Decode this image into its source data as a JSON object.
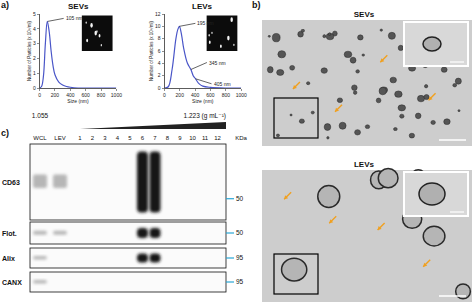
{
  "panels": {
    "a": "a)",
    "b": "b)",
    "c": "c)"
  },
  "chart_data": [
    {
      "type": "line",
      "title": "SEVs",
      "x_label": "Size (nm)",
      "y_label": "Number of Particles (x 10⁶/ml)",
      "color": "#4a56c8",
      "grid": false,
      "x": [
        0,
        25,
        50,
        75,
        100,
        125,
        150,
        175,
        200,
        250,
        300,
        350,
        400,
        500,
        600,
        800,
        1000
      ],
      "values": [
        0,
        0.1,
        0.8,
        3.0,
        4.5,
        3.8,
        2.5,
        1.5,
        0.9,
        0.4,
        0.2,
        0.1,
        0.05,
        0,
        0,
        0,
        0
      ],
      "xlim": [
        0,
        1000
      ],
      "xticks": [
        0,
        200,
        400,
        600,
        800,
        1000
      ],
      "ylim": [
        0,
        5
      ],
      "yticks": [
        0,
        1,
        2,
        3,
        4,
        5
      ],
      "annotations": [
        {
          "text": "105 nm",
          "x": 105,
          "y": 4.5
        }
      ]
    },
    {
      "type": "line",
      "title": "LEVs",
      "x_label": "Size (nm)",
      "y_label": "Number of Particles (x 10⁶/ml)",
      "color": "#4a56c8",
      "grid": false,
      "x": [
        0,
        50,
        100,
        150,
        175,
        195,
        225,
        250,
        300,
        345,
        375,
        405,
        450,
        500,
        600,
        800,
        1000
      ],
      "values": [
        0,
        0.2,
        3,
        8,
        9.5,
        10,
        8.5,
        6.5,
        4,
        3,
        2,
        1.5,
        0.7,
        0.3,
        0.1,
        0,
        0
      ],
      "xlim": [
        0,
        1000
      ],
      "xticks": [
        0,
        200,
        400,
        600,
        800,
        1000
      ],
      "ylim": [
        0,
        12
      ],
      "yticks": [
        0,
        2,
        4,
        6,
        8,
        10,
        12
      ],
      "annotations": [
        {
          "text": "195 nm",
          "x": 195,
          "y": 10
        },
        {
          "text": "345 nm",
          "x": 345,
          "y": 3
        },
        {
          "text": "405 nm",
          "x": 405,
          "y": 1.5
        }
      ]
    }
  ],
  "tem": {
    "labels": [
      "SEVs",
      "LEVs"
    ]
  },
  "gradient": {
    "low": "1.055",
    "high": "1.223 (g mL⁻¹)"
  },
  "blot": {
    "lanes": [
      "WCL",
      "LEV",
      "1",
      "2",
      "3",
      "4",
      "5",
      "6",
      "7",
      "8",
      "9",
      "10",
      "11",
      "12"
    ],
    "unit": "KDa",
    "rows": [
      {
        "name": "CD63",
        "marker": "50",
        "strong": [
          "6",
          "7"
        ],
        "faint": [
          "WCL",
          "LEV"
        ]
      },
      {
        "name": "Flot.",
        "marker": "50",
        "strong": [
          "6",
          "7"
        ],
        "faint": [
          "WCL",
          "LEV"
        ]
      },
      {
        "name": "Alix",
        "marker": "95",
        "strong": [
          "6",
          "7"
        ],
        "faint": [
          "WCL"
        ]
      },
      {
        "name": "CANX",
        "marker": "95",
        "strong": [],
        "faint": [
          "WCL"
        ]
      }
    ]
  }
}
